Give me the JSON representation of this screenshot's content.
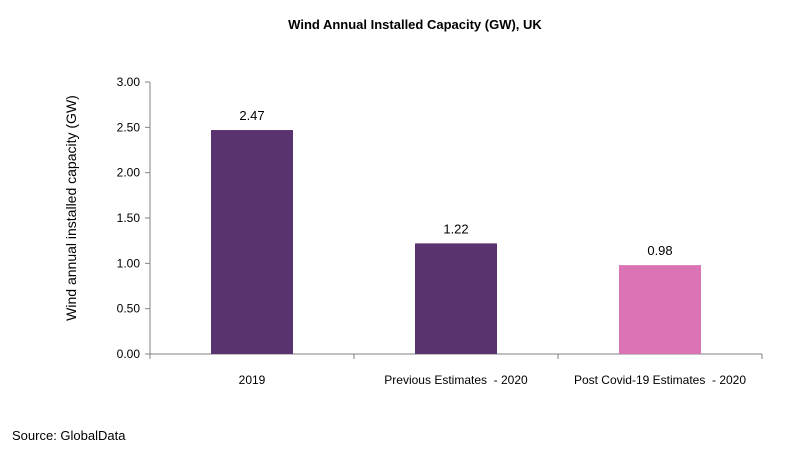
{
  "chart_data": {
    "type": "bar",
    "title": "Wind Annual Installed Capacity (GW), UK",
    "xlabel": "",
    "ylabel": "Wind annual installed capacity (GW)",
    "categories": [
      "2019",
      "Previous Estimates  - 2020",
      "Post Covid-19 Estimates  - 2020"
    ],
    "values": [
      2.47,
      1.22,
      0.98
    ],
    "value_labels": [
      "2.47",
      "1.22",
      "0.98"
    ],
    "bar_colors": [
      "#59336f",
      "#59336f",
      "#dc73b4"
    ],
    "ylim": [
      0,
      3.0
    ],
    "yticks": [
      "0.00",
      "0.50",
      "1.00",
      "1.50",
      "2.00",
      "2.50",
      "3.00"
    ],
    "grid": false,
    "legend": "none"
  },
  "footer": {
    "source": "Source: GlobalData"
  }
}
